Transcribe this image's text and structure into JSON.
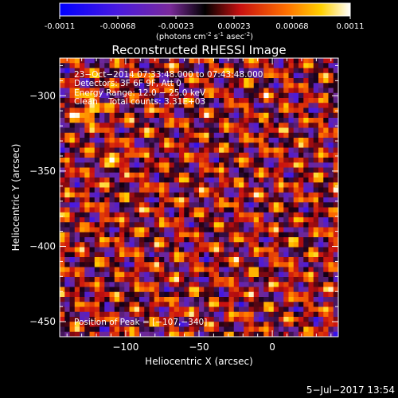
{
  "colorbar": {
    "ticks": [
      "-0.0011",
      "-0.00068",
      "-0.00023",
      "0.00023",
      "0.00068",
      "0.0011"
    ],
    "units": "(photons cm",
    "units_exp1": "-2",
    "units_mid": " s",
    "units_exp2": "-1",
    "units_end": " asec",
    "units_exp3": "-2",
    "units_close": ")"
  },
  "chart_data": {
    "type": "heatmap",
    "title": "Reconstructed RHESSI Image",
    "xlabel": "Heliocentric X (arcsec)",
    "ylabel": "Heliocentric Y (arcsec)",
    "xlim": [
      -145,
      45
    ],
    "ylim": [
      -460,
      -275
    ],
    "x_ticks": [
      -100,
      -50,
      0
    ],
    "y_ticks": [
      -300,
      -350,
      -400,
      -450
    ],
    "x_tick_labels": [
      "−100",
      "−50",
      "0"
    ],
    "y_tick_labels": [
      "−300",
      "−350",
      "−400",
      "−450"
    ],
    "value_range": [
      -0.0011,
      0.0011
    ],
    "colormap": "red-temperature (blue→purple→black→red→orange→yellow→white)",
    "peak": [
      -107,
      -340
    ],
    "annotations": [
      "23−Oct−2014 07:33:48.000 to 07:43:48.000",
      "Detectors: 3F 6F 9F, Att 0",
      "Energy Range: 12.0 − 25.0 keV",
      "Clean    Total counts: 3.31E+03",
      "Position of Peak = [−107,−340]"
    ]
  },
  "footer": {
    "timestamp": "5−Jul−2017 13:54"
  },
  "colors": {
    "background": "#000000",
    "foreground": "#ffffff"
  }
}
